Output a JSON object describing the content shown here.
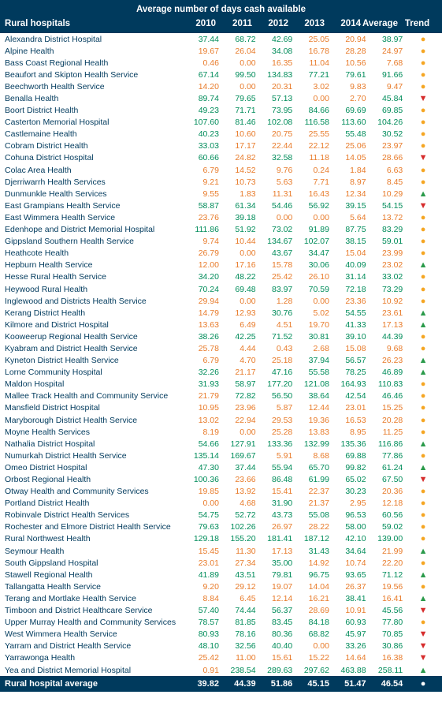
{
  "colors": {
    "header_bg": "#003a5d",
    "positive": "#008c5a",
    "negative": "#e87b2a",
    "name_text": "#003a5d",
    "trend_up": "#2a9a4a",
    "trend_down": "#d62c2c",
    "trend_flat": "#f5a623"
  },
  "header": {
    "super": "Average number of days cash available",
    "name_label": "Rural hospitals",
    "years": [
      "2010",
      "2011",
      "2012",
      "2013",
      "2014",
      "Average",
      "Trend"
    ]
  },
  "threshold": 30,
  "rows": [
    {
      "name": "Alexandra District Hospital",
      "v": [
        37.44,
        68.72,
        42.69,
        25.05,
        20.94,
        38.97
      ],
      "t": "flat"
    },
    {
      "name": "Alpine Health",
      "v": [
        19.67,
        26.04,
        34.08,
        16.78,
        28.28,
        24.97
      ],
      "t": "flat"
    },
    {
      "name": "Bass Coast Regional Health",
      "v": [
        0.46,
        0.0,
        16.35,
        11.04,
        10.56,
        7.68
      ],
      "t": "flat"
    },
    {
      "name": "Beaufort and Skipton Health Service",
      "v": [
        67.14,
        99.5,
        134.83,
        77.21,
        79.61,
        91.66
      ],
      "t": "flat"
    },
    {
      "name": "Beechworth Health Service",
      "v": [
        14.2,
        0.0,
        20.31,
        3.02,
        9.83,
        9.47
      ],
      "t": "flat"
    },
    {
      "name": "Benalla Health",
      "v": [
        89.74,
        79.65,
        57.13,
        0.0,
        2.7,
        45.84
      ],
      "t": "down"
    },
    {
      "name": "Boort District Health",
      "v": [
        49.23,
        71.71,
        73.95,
        84.66,
        69.69,
        69.85
      ],
      "t": "flat"
    },
    {
      "name": "Casterton Memorial Hospital",
      "v": [
        107.6,
        81.46,
        102.08,
        116.58,
        113.6,
        104.26
      ],
      "t": "flat"
    },
    {
      "name": "Castlemaine Health",
      "v": [
        40.23,
        10.6,
        20.75,
        25.55,
        55.48,
        30.52
      ],
      "t": "flat"
    },
    {
      "name": "Cobram District Health",
      "v": [
        33.03,
        17.17,
        22.44,
        22.12,
        25.06,
        23.97
      ],
      "t": "flat"
    },
    {
      "name": "Cohuna District Hospital",
      "v": [
        60.66,
        24.82,
        32.58,
        11.18,
        14.05,
        28.66
      ],
      "t": "down"
    },
    {
      "name": "Colac Area Health",
      "v": [
        6.79,
        14.52,
        9.76,
        0.24,
        1.84,
        6.63
      ],
      "t": "flat"
    },
    {
      "name": "Djerriwarrh Health Services",
      "v": [
        9.21,
        10.73,
        5.63,
        7.71,
        8.97,
        8.45
      ],
      "t": "flat"
    },
    {
      "name": "Dunmunkle Health Services",
      "v": [
        9.55,
        1.83,
        11.31,
        16.43,
        12.34,
        10.29
      ],
      "t": "up"
    },
    {
      "name": "East Grampians Health Service",
      "v": [
        58.87,
        61.34,
        54.46,
        56.92,
        39.15,
        54.15
      ],
      "t": "down"
    },
    {
      "name": "East Wimmera Health Service",
      "v": [
        23.76,
        39.18,
        0.0,
        0.0,
        5.64,
        13.72
      ],
      "t": "flat"
    },
    {
      "name": "Edenhope and District Memorial Hospital",
      "v": [
        111.86,
        51.92,
        73.02,
        91.89,
        87.75,
        83.29
      ],
      "t": "flat"
    },
    {
      "name": "Gippsland Southern Health Service",
      "v": [
        9.74,
        10.44,
        134.67,
        102.07,
        38.15,
        59.01
      ],
      "t": "flat"
    },
    {
      "name": "Heathcote Health",
      "v": [
        26.79,
        0.0,
        43.67,
        34.47,
        15.04,
        23.99
      ],
      "t": "flat"
    },
    {
      "name": "Hepburn Health Service",
      "v": [
        12.0,
        17.16,
        15.78,
        30.06,
        40.09,
        23.02
      ],
      "t": "up"
    },
    {
      "name": "Hesse Rural Health Service",
      "v": [
        34.2,
        48.22,
        25.42,
        26.1,
        31.14,
        33.02
      ],
      "t": "flat"
    },
    {
      "name": "Heywood Rural Health",
      "v": [
        70.24,
        69.48,
        83.97,
        70.59,
        72.18,
        73.29
      ],
      "t": "flat"
    },
    {
      "name": "Inglewood and Districts Health Service",
      "v": [
        29.94,
        0.0,
        1.28,
        0.0,
        23.36,
        10.92
      ],
      "t": "flat"
    },
    {
      "name": "Kerang District Health",
      "v": [
        14.79,
        12.93,
        30.76,
        5.02,
        54.55,
        23.61
      ],
      "t": "up"
    },
    {
      "name": "Kilmore and District Hospital",
      "v": [
        13.63,
        6.49,
        4.51,
        19.7,
        41.33,
        17.13
      ],
      "t": "up"
    },
    {
      "name": "Kooweerup Regional Health Service",
      "v": [
        38.26,
        42.25,
        71.52,
        30.81,
        39.1,
        44.39
      ],
      "t": "flat"
    },
    {
      "name": "Kyabram and District Health Service",
      "v": [
        25.78,
        4.44,
        0.43,
        2.68,
        15.08,
        9.68
      ],
      "t": "flat"
    },
    {
      "name": "Kyneton District Health Service",
      "v": [
        6.79,
        4.7,
        25.18,
        37.94,
        56.57,
        26.23
      ],
      "t": "up"
    },
    {
      "name": "Lorne Community Hospital",
      "v": [
        32.26,
        21.17,
        47.16,
        55.58,
        78.25,
        46.89
      ],
      "t": "up"
    },
    {
      "name": "Maldon Hospital",
      "v": [
        31.93,
        58.97,
        177.2,
        121.08,
        164.93,
        110.83
      ],
      "t": "flat"
    },
    {
      "name": "Mallee Track Health and Community Service",
      "v": [
        21.79,
        72.82,
        56.5,
        38.64,
        42.54,
        46.46
      ],
      "t": "flat"
    },
    {
      "name": "Mansfield District Hospital",
      "v": [
        10.95,
        23.96,
        5.87,
        12.44,
        23.01,
        15.25
      ],
      "t": "flat"
    },
    {
      "name": "Maryborough District Health Service",
      "v": [
        13.02,
        22.94,
        29.53,
        19.36,
        16.53,
        20.28
      ],
      "t": "flat"
    },
    {
      "name": "Moyne Health Services",
      "v": [
        8.19,
        0.0,
        25.28,
        13.83,
        8.95,
        11.25
      ],
      "t": "flat"
    },
    {
      "name": "Nathalia District Hospital",
      "v": [
        54.66,
        127.91,
        133.36,
        132.99,
        135.36,
        116.86
      ],
      "t": "up"
    },
    {
      "name": "Numurkah District Health Service",
      "v": [
        135.14,
        169.67,
        5.91,
        8.68,
        69.88,
        77.86
      ],
      "t": "flat"
    },
    {
      "name": "Omeo District Hospital",
      "v": [
        47.3,
        37.44,
        55.94,
        65.7,
        99.82,
        61.24
      ],
      "t": "up"
    },
    {
      "name": "Orbost Regional Health",
      "v": [
        100.36,
        23.66,
        86.48,
        61.99,
        65.02,
        67.5
      ],
      "t": "down"
    },
    {
      "name": "Otway Health and Community Services",
      "v": [
        19.85,
        13.92,
        15.41,
        22.37,
        30.23,
        20.36
      ],
      "t": "flat"
    },
    {
      "name": "Portland District Health",
      "v": [
        0.0,
        4.68,
        31.9,
        21.37,
        2.95,
        12.18
      ],
      "t": "flat"
    },
    {
      "name": "Robinvale District Health Services",
      "v": [
        54.75,
        52.72,
        43.73,
        55.08,
        96.53,
        60.56
      ],
      "t": "flat"
    },
    {
      "name": "Rochester and Elmore District Health Service",
      "v": [
        79.63,
        102.26,
        26.97,
        28.22,
        58.0,
        59.02
      ],
      "t": "flat"
    },
    {
      "name": "Rural Northwest Health",
      "v": [
        129.18,
        155.2,
        181.41,
        187.12,
        42.1,
        139.0
      ],
      "t": "flat"
    },
    {
      "name": "Seymour Health",
      "v": [
        15.45,
        11.3,
        17.13,
        31.43,
        34.64,
        21.99
      ],
      "t": "up"
    },
    {
      "name": "South Gippsland Hospital",
      "v": [
        23.01,
        27.34,
        35.0,
        14.92,
        10.74,
        22.2
      ],
      "t": "flat"
    },
    {
      "name": "Stawell Regional Health",
      "v": [
        41.89,
        43.51,
        79.81,
        96.75,
        93.65,
        71.12
      ],
      "t": "up"
    },
    {
      "name": "Tallangatta Health Service",
      "v": [
        9.2,
        29.12,
        19.07,
        14.04,
        26.37,
        19.56
      ],
      "t": "flat"
    },
    {
      "name": "Terang and Mortlake Health Service",
      "v": [
        8.84,
        6.45,
        12.14,
        16.21,
        38.41,
        16.41
      ],
      "t": "up"
    },
    {
      "name": "Timboon and District Healthcare Service",
      "v": [
        57.4,
        74.44,
        56.37,
        28.69,
        10.91,
        45.56
      ],
      "t": "down"
    },
    {
      "name": "Upper Murray Health and Community Services",
      "v": [
        78.57,
        81.85,
        83.45,
        84.18,
        60.93,
        77.8
      ],
      "t": "flat"
    },
    {
      "name": "West Wimmera Health Service",
      "v": [
        80.93,
        78.16,
        80.36,
        68.82,
        45.97,
        70.85
      ],
      "t": "down"
    },
    {
      "name": "Yarram and District Health Service",
      "v": [
        48.1,
        32.56,
        40.4,
        0.0,
        33.26,
        30.86
      ],
      "t": "down"
    },
    {
      "name": "Yarrawonga Health",
      "v": [
        25.42,
        11.0,
        15.61,
        15.22,
        14.64,
        16.38
      ],
      "t": "down"
    },
    {
      "name": "Yea and District Memorial Hospital",
      "v": [
        0.91,
        238.54,
        289.63,
        297.62,
        463.88,
        258.11
      ],
      "t": "up"
    }
  ],
  "footer": {
    "name": "Rural hospital average",
    "v": [
      39.82,
      44.39,
      51.86,
      45.15,
      51.47,
      46.54
    ],
    "t": "flat"
  }
}
